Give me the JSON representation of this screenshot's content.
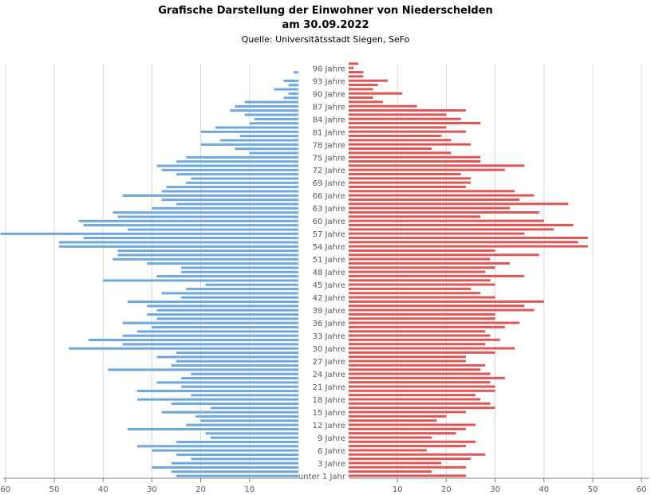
{
  "chart_data": {
    "type": "bar",
    "orientation": "horizontal-population-pyramid",
    "title": "Grafische Darstellung der Einwohner von Niederschelden",
    "subtitle": "am 30.09.2022",
    "source": "Quelle: Universitätsstadt Siegen, SeFo",
    "xlabel": "",
    "ylabel": "",
    "xlim": [
      0,
      60
    ],
    "grid": true,
    "x_ticks_left": [
      "60",
      "50",
      "40",
      "30",
      "20",
      "10"
    ],
    "x_ticks_right": [
      "10",
      "20",
      "30",
      "40",
      "50",
      "60"
    ],
    "ages": [
      0,
      1,
      2,
      3,
      4,
      5,
      6,
      7,
      8,
      9,
      10,
      11,
      12,
      13,
      14,
      15,
      16,
      17,
      18,
      19,
      20,
      21,
      22,
      23,
      24,
      25,
      26,
      27,
      28,
      29,
      30,
      31,
      32,
      33,
      34,
      35,
      36,
      37,
      38,
      39,
      40,
      41,
      42,
      43,
      44,
      45,
      46,
      47,
      48,
      49,
      50,
      51,
      52,
      53,
      54,
      55,
      56,
      57,
      58,
      59,
      60,
      61,
      62,
      63,
      64,
      65,
      66,
      67,
      68,
      69,
      70,
      71,
      72,
      73,
      74,
      75,
      76,
      77,
      78,
      79,
      80,
      81,
      82,
      83,
      84,
      85,
      86,
      87,
      88,
      89,
      90,
      91,
      92,
      93,
      94,
      95,
      96,
      97
    ],
    "age_labels": [
      {
        "age": 0,
        "text": "unter 1 Jahr"
      },
      {
        "age": 3,
        "text": "3 Jahre"
      },
      {
        "age": 6,
        "text": "6 Jahre"
      },
      {
        "age": 9,
        "text": "9 Jahre"
      },
      {
        "age": 12,
        "text": "12 Jahre"
      },
      {
        "age": 15,
        "text": "15 Jahre"
      },
      {
        "age": 18,
        "text": "18 Jahre"
      },
      {
        "age": 21,
        "text": "21 Jahre"
      },
      {
        "age": 24,
        "text": "24 Jahre"
      },
      {
        "age": 27,
        "text": "27 Jahre"
      },
      {
        "age": 30,
        "text": "30 Jahre"
      },
      {
        "age": 33,
        "text": "33 Jahre"
      },
      {
        "age": 36,
        "text": "36 Jahre"
      },
      {
        "age": 39,
        "text": "39 Jahre"
      },
      {
        "age": 42,
        "text": "42 Jahre"
      },
      {
        "age": 45,
        "text": "45 Jahre"
      },
      {
        "age": 48,
        "text": "48 Jahre"
      },
      {
        "age": 51,
        "text": "51 Jahre"
      },
      {
        "age": 54,
        "text": "54 Jahre"
      },
      {
        "age": 57,
        "text": "57 Jahre"
      },
      {
        "age": 60,
        "text": "60 Jahre"
      },
      {
        "age": 63,
        "text": "63 Jahre"
      },
      {
        "age": 66,
        "text": "66 Jahre"
      },
      {
        "age": 69,
        "text": "69 Jahre"
      },
      {
        "age": 72,
        "text": "72 Jahre"
      },
      {
        "age": 75,
        "text": "75 Jahre"
      },
      {
        "age": 78,
        "text": "78 Jahre"
      },
      {
        "age": 81,
        "text": "81 Jahre"
      },
      {
        "age": 84,
        "text": "84 Jahre"
      },
      {
        "age": 87,
        "text": "87 Jahre"
      },
      {
        "age": 90,
        "text": "90 Jahre"
      },
      {
        "age": 93,
        "text": "93 Jahre"
      },
      {
        "age": 96,
        "text": "96 Jahre"
      }
    ],
    "series": [
      {
        "name": "left",
        "color": "#6FA8DC",
        "values": [
          25,
          26,
          30,
          26,
          22,
          25,
          30,
          33,
          25,
          18,
          19,
          35,
          23,
          20,
          21,
          28,
          18,
          26,
          33,
          22,
          33,
          24,
          29,
          24,
          22,
          39,
          26,
          25,
          29,
          25,
          47,
          36,
          43,
          36,
          33,
          30,
          36,
          29,
          31,
          29,
          31,
          35,
          24,
          28,
          23,
          19,
          40,
          29,
          24,
          24,
          31,
          38,
          37,
          37,
          49,
          49,
          44,
          61,
          35,
          44,
          45,
          37,
          38,
          30,
          25,
          28,
          36,
          28,
          27,
          23,
          22,
          25,
          28,
          29,
          25,
          23,
          10,
          13,
          20,
          16,
          12,
          20,
          17,
          10,
          9,
          11,
          14,
          13,
          11,
          3,
          2,
          5,
          2,
          3,
          0,
          1,
          0,
          0
        ]
      },
      {
        "name": "right",
        "color": "#E05555",
        "values": [
          24,
          17,
          24,
          19,
          25,
          28,
          16,
          24,
          26,
          17,
          22,
          24,
          26,
          18,
          20,
          24,
          30,
          29,
          27,
          26,
          30,
          30,
          29,
          32,
          29,
          27,
          28,
          24,
          24,
          30,
          34,
          28,
          31,
          29,
          28,
          32,
          35,
          30,
          30,
          38,
          36,
          40,
          30,
          27,
          25,
          30,
          29,
          36,
          28,
          30,
          33,
          29,
          39,
          30,
          49,
          47,
          49,
          36,
          42,
          46,
          40,
          27,
          39,
          33,
          45,
          35,
          38,
          34,
          24,
          25,
          25,
          23,
          32,
          36,
          27,
          27,
          21,
          17,
          25,
          21,
          19,
          24,
          20,
          27,
          23,
          20,
          24,
          14,
          7,
          5,
          11,
          5,
          6,
          8,
          3,
          3,
          1,
          2
        ]
      }
    ],
    "colors": {
      "left_bar": "#6FA8DC",
      "right_bar": "#E05555",
      "grid": "#D9D9D9",
      "axis": "#808080",
      "tick_text": "#595959"
    }
  }
}
